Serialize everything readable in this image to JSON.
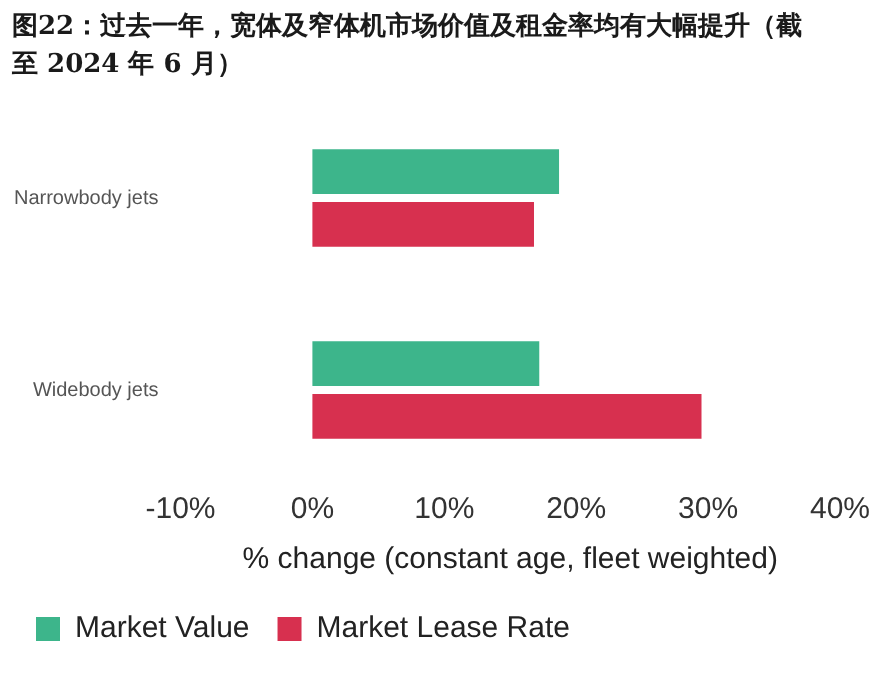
{
  "chart_data": {
    "type": "bar",
    "orientation": "horizontal",
    "title": "图22：过去一年，宽体及窄体机市场价值及租金率均有大幅提升（截至 2024 年 6 月）",
    "xlabel": "% change (constant age, fleet weighted)",
    "categories": [
      "Narrowbody jets",
      "Widebody jets"
    ],
    "series": [
      {
        "name": "Market Value",
        "color": "#3db58b",
        "values": [
          18.7,
          17.2
        ]
      },
      {
        "name": "Market Lease Rate",
        "color": "#d7304f",
        "values": [
          16.8,
          29.5
        ]
      }
    ],
    "xlim": [
      -10,
      40
    ],
    "xticks": [
      {
        "value": -10,
        "label": "-10%"
      },
      {
        "value": 0,
        "label": "0%"
      },
      {
        "value": 10,
        "label": "10%"
      },
      {
        "value": 20,
        "label": "20%"
      },
      {
        "value": 30,
        "label": "30%"
      },
      {
        "value": 40,
        "label": "40%"
      }
    ],
    "legend": "bottom"
  }
}
